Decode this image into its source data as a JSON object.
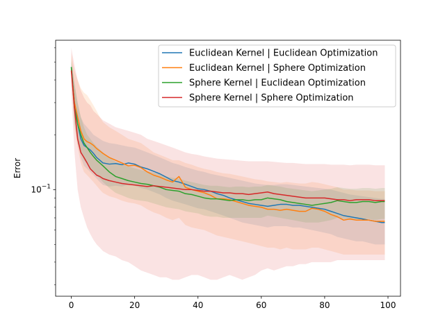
{
  "chart_data": {
    "type": "line",
    "title": "",
    "xlabel": "",
    "ylabel": "Error",
    "xlim": [
      -4.95,
      103.95
    ],
    "ylim": [
      0.026,
      0.66
    ],
    "yscale": "log",
    "x_ticks": [
      0,
      20,
      40,
      60,
      80,
      100
    ],
    "x_tick_labels": [
      "0",
      "20",
      "40",
      "60",
      "80",
      "100"
    ],
    "y_major_ticks": [
      0.1
    ],
    "y_major_tick_labels": [
      "10^-1"
    ],
    "y_minor_ticks": [
      0.03,
      0.04,
      0.05,
      0.06,
      0.07,
      0.08,
      0.09,
      0.2,
      0.3,
      0.4,
      0.5,
      0.6
    ],
    "grid": false,
    "legend": "top-right",
    "x_samples": [
      0,
      1,
      2,
      3,
      4,
      5,
      6,
      7,
      8,
      9,
      10,
      12,
      14,
      16,
      18,
      20,
      22,
      24,
      26,
      28,
      30,
      32,
      34,
      36,
      38,
      40,
      42,
      44,
      46,
      48,
      50,
      52,
      54,
      56,
      58,
      60,
      62,
      64,
      66,
      68,
      70,
      72,
      74,
      76,
      78,
      80,
      82,
      84,
      86,
      88,
      90,
      92,
      94,
      96,
      98,
      99
    ],
    "series": [
      {
        "name": "Euclidean Kernel | Euclidean Optimization",
        "color": "#1f77b4",
        "values": [
          0.47,
          0.3,
          0.23,
          0.19,
          0.175,
          0.17,
          0.165,
          0.158,
          0.15,
          0.145,
          0.14,
          0.138,
          0.139,
          0.137,
          0.14,
          0.138,
          0.133,
          0.13,
          0.126,
          0.122,
          0.117,
          0.112,
          0.11,
          0.107,
          0.104,
          0.101,
          0.1,
          0.098,
          0.095,
          0.093,
          0.09,
          0.088,
          0.086,
          0.084,
          0.083,
          0.082,
          0.081,
          0.082,
          0.083,
          0.083,
          0.082,
          0.082,
          0.081,
          0.08,
          0.079,
          0.078,
          0.076,
          0.074,
          0.072,
          0.071,
          0.07,
          0.069,
          0.068,
          0.067,
          0.066,
          0.066
        ],
        "upper": [
          0.5,
          0.38,
          0.3,
          0.25,
          0.23,
          0.22,
          0.21,
          0.2,
          0.195,
          0.19,
          0.185,
          0.18,
          0.178,
          0.175,
          0.172,
          0.17,
          0.165,
          0.16,
          0.155,
          0.15,
          0.145,
          0.14,
          0.137,
          0.133,
          0.13,
          0.127,
          0.125,
          0.122,
          0.12,
          0.118,
          0.116,
          0.114,
          0.112,
          0.11,
          0.108,
          0.107,
          0.106,
          0.106,
          0.107,
          0.107,
          0.106,
          0.105,
          0.104,
          0.103,
          0.102,
          0.101,
          0.1,
          0.098,
          0.096,
          0.094,
          0.093,
          0.092,
          0.091,
          0.09,
          0.089,
          0.089
        ],
        "lower": [
          0.44,
          0.24,
          0.18,
          0.15,
          0.135,
          0.13,
          0.125,
          0.12,
          0.115,
          0.11,
          0.106,
          0.104,
          0.105,
          0.104,
          0.106,
          0.105,
          0.102,
          0.1,
          0.097,
          0.094,
          0.09,
          0.087,
          0.085,
          0.083,
          0.081,
          0.079,
          0.078,
          0.076,
          0.074,
          0.072,
          0.07,
          0.068,
          0.066,
          0.065,
          0.064,
          0.063,
          0.062,
          0.063,
          0.063,
          0.063,
          0.062,
          0.062,
          0.061,
          0.06,
          0.059,
          0.058,
          0.057,
          0.055,
          0.054,
          0.053,
          0.052,
          0.052,
          0.051,
          0.05,
          0.05,
          0.05
        ]
      },
      {
        "name": "Euclidean Kernel | Sphere Optimization",
        "color": "#ff7f0e",
        "values": [
          0.46,
          0.3,
          0.25,
          0.21,
          0.19,
          0.183,
          0.18,
          0.175,
          0.168,
          0.163,
          0.158,
          0.15,
          0.145,
          0.14,
          0.135,
          0.136,
          0.132,
          0.125,
          0.12,
          0.117,
          0.113,
          0.11,
          0.118,
          0.103,
          0.1,
          0.098,
          0.096,
          0.093,
          0.089,
          0.089,
          0.088,
          0.086,
          0.084,
          0.082,
          0.081,
          0.08,
          0.078,
          0.078,
          0.077,
          0.078,
          0.077,
          0.076,
          0.076,
          0.079,
          0.078,
          0.076,
          0.073,
          0.071,
          0.068,
          0.069,
          0.068,
          0.068,
          0.068,
          0.067,
          0.067,
          0.067
        ],
        "upper": [
          0.56,
          0.45,
          0.4,
          0.36,
          0.34,
          0.33,
          0.31,
          0.29,
          0.27,
          0.25,
          0.235,
          0.22,
          0.21,
          0.2,
          0.19,
          0.185,
          0.18,
          0.17,
          0.16,
          0.155,
          0.15,
          0.145,
          0.145,
          0.14,
          0.137,
          0.133,
          0.13,
          0.128,
          0.125,
          0.123,
          0.122,
          0.12,
          0.118,
          0.116,
          0.114,
          0.113,
          0.111,
          0.11,
          0.109,
          0.11,
          0.109,
          0.108,
          0.108,
          0.11,
          0.109,
          0.107,
          0.105,
          0.103,
          0.1,
          0.1,
          0.099,
          0.099,
          0.099,
          0.098,
          0.098,
          0.098
        ],
        "lower": [
          0.4,
          0.22,
          0.17,
          0.14,
          0.125,
          0.12,
          0.115,
          0.11,
          0.105,
          0.1,
          0.096,
          0.092,
          0.09,
          0.087,
          0.085,
          0.084,
          0.082,
          0.078,
          0.075,
          0.073,
          0.07,
          0.068,
          0.07,
          0.064,
          0.062,
          0.061,
          0.06,
          0.058,
          0.056,
          0.055,
          0.054,
          0.053,
          0.052,
          0.051,
          0.05,
          0.049,
          0.048,
          0.048,
          0.047,
          0.048,
          0.047,
          0.047,
          0.047,
          0.048,
          0.048,
          0.047,
          0.046,
          0.045,
          0.044,
          0.044,
          0.044,
          0.044,
          0.044,
          0.044,
          0.044,
          0.044
        ]
      },
      {
        "name": "Sphere Kernel | Euclidean Optimization",
        "color": "#2ca02c",
        "values": [
          0.47,
          0.28,
          0.23,
          0.2,
          0.18,
          0.17,
          0.16,
          0.152,
          0.145,
          0.14,
          0.135,
          0.125,
          0.118,
          0.115,
          0.112,
          0.11,
          0.108,
          0.107,
          0.105,
          0.103,
          0.1,
          0.099,
          0.098,
          0.095,
          0.094,
          0.092,
          0.09,
          0.089,
          0.089,
          0.088,
          0.087,
          0.088,
          0.088,
          0.087,
          0.088,
          0.088,
          0.09,
          0.089,
          0.088,
          0.086,
          0.085,
          0.084,
          0.083,
          0.082,
          0.083,
          0.084,
          0.085,
          0.087,
          0.086,
          0.085,
          0.085,
          0.086,
          0.086,
          0.085,
          0.086,
          0.086
        ],
        "upper": [
          0.52,
          0.38,
          0.3,
          0.25,
          0.22,
          0.2,
          0.19,
          0.18,
          0.172,
          0.166,
          0.16,
          0.15,
          0.142,
          0.138,
          0.134,
          0.131,
          0.128,
          0.126,
          0.124,
          0.121,
          0.118,
          0.116,
          0.115,
          0.112,
          0.11,
          0.108,
          0.106,
          0.105,
          0.105,
          0.104,
          0.103,
          0.104,
          0.104,
          0.103,
          0.104,
          0.104,
          0.106,
          0.105,
          0.104,
          0.102,
          0.101,
          0.1,
          0.099,
          0.098,
          0.099,
          0.1,
          0.101,
          0.103,
          0.102,
          0.101,
          0.101,
          0.102,
          0.102,
          0.101,
          0.102,
          0.102
        ],
        "lower": [
          0.42,
          0.23,
          0.18,
          0.16,
          0.145,
          0.138,
          0.131,
          0.125,
          0.12,
          0.115,
          0.11,
          0.102,
          0.096,
          0.093,
          0.09,
          0.088,
          0.087,
          0.086,
          0.084,
          0.082,
          0.08,
          0.079,
          0.078,
          0.076,
          0.075,
          0.074,
          0.072,
          0.071,
          0.071,
          0.07,
          0.07,
          0.07,
          0.07,
          0.07,
          0.07,
          0.07,
          0.072,
          0.071,
          0.07,
          0.069,
          0.068,
          0.067,
          0.066,
          0.066,
          0.066,
          0.067,
          0.068,
          0.07,
          0.069,
          0.068,
          0.068,
          0.069,
          0.069,
          0.068,
          0.069,
          0.069
        ]
      },
      {
        "name": "Sphere Kernel | Sphere Optimization",
        "color": "#d62728",
        "values": [
          0.45,
          0.28,
          0.19,
          0.16,
          0.15,
          0.14,
          0.13,
          0.125,
          0.12,
          0.118,
          0.115,
          0.112,
          0.11,
          0.108,
          0.107,
          0.106,
          0.105,
          0.104,
          0.105,
          0.104,
          0.103,
          0.102,
          0.101,
          0.1,
          0.1,
          0.099,
          0.098,
          0.098,
          0.097,
          0.096,
          0.096,
          0.095,
          0.095,
          0.094,
          0.095,
          0.096,
          0.097,
          0.095,
          0.094,
          0.093,
          0.092,
          0.091,
          0.09,
          0.09,
          0.09,
          0.09,
          0.089,
          0.088,
          0.088,
          0.087,
          0.088,
          0.088,
          0.088,
          0.087,
          0.087,
          0.087
        ],
        "upper": [
          0.6,
          0.48,
          0.4,
          0.35,
          0.32,
          0.3,
          0.29,
          0.27,
          0.26,
          0.25,
          0.24,
          0.23,
          0.22,
          0.215,
          0.21,
          0.205,
          0.2,
          0.19,
          0.185,
          0.18,
          0.175,
          0.17,
          0.165,
          0.16,
          0.157,
          0.155,
          0.152,
          0.15,
          0.148,
          0.147,
          0.146,
          0.145,
          0.144,
          0.143,
          0.143,
          0.143,
          0.143,
          0.142,
          0.141,
          0.14,
          0.14,
          0.139,
          0.138,
          0.138,
          0.138,
          0.138,
          0.137,
          0.137,
          0.137,
          0.136,
          0.137,
          0.137,
          0.137,
          0.136,
          0.136,
          0.136
        ],
        "lower": [
          0.34,
          0.16,
          0.1,
          0.08,
          0.07,
          0.062,
          0.057,
          0.053,
          0.05,
          0.048,
          0.046,
          0.044,
          0.043,
          0.041,
          0.04,
          0.038,
          0.036,
          0.035,
          0.034,
          0.033,
          0.033,
          0.032,
          0.032,
          0.033,
          0.034,
          0.034,
          0.033,
          0.032,
          0.032,
          0.033,
          0.034,
          0.033,
          0.032,
          0.033,
          0.034,
          0.036,
          0.037,
          0.036,
          0.037,
          0.038,
          0.038,
          0.039,
          0.039,
          0.04,
          0.04,
          0.04,
          0.04,
          0.041,
          0.041,
          0.041,
          0.041,
          0.041,
          0.041,
          0.041,
          0.041,
          0.041
        ]
      }
    ]
  }
}
